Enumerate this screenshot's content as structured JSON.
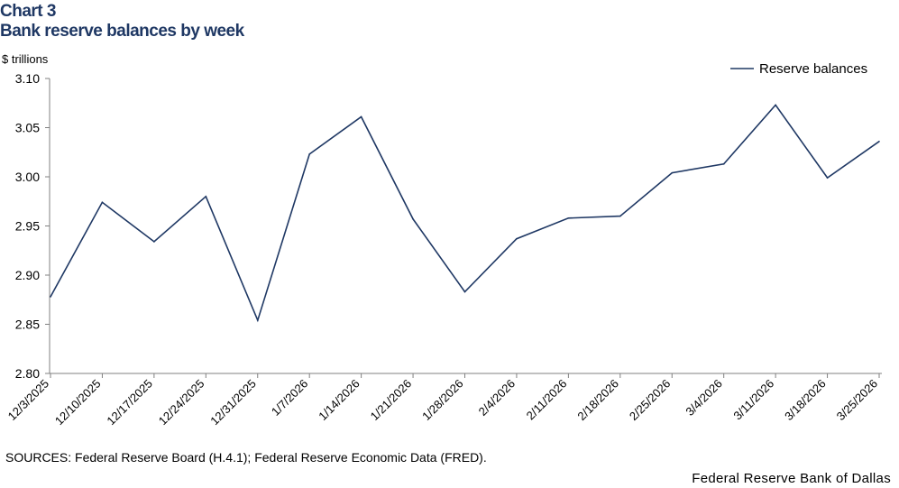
{
  "chart_data": {
    "type": "line",
    "label": "Chart 3",
    "title": "Bank reserve balances by week",
    "ylabel": "$ trillions",
    "xlabel": "",
    "ylim": [
      2.8,
      3.1
    ],
    "ytick_values": [
      2.8,
      2.85,
      2.9,
      2.95,
      3.0,
      3.05,
      3.1
    ],
    "ytick_labels": [
      "2.80",
      "2.85",
      "2.90",
      "2.95",
      "3.00",
      "3.05",
      "3.10"
    ],
    "categories": [
      "12/3/2025",
      "12/10/2025",
      "12/17/2025",
      "12/24/2025",
      "12/31/2025",
      "1/7/2026",
      "1/14/2026",
      "1/21/2026",
      "1/28/2026",
      "2/4/2026",
      "2/11/2026",
      "2/18/2026",
      "2/25/2026",
      "3/4/2026",
      "3/11/2026",
      "3/18/2026",
      "3/25/2026"
    ],
    "series": [
      {
        "name": "Reserve balances",
        "color": "#1f3864",
        "values": [
          2.878,
          2.974,
          2.934,
          2.98,
          2.854,
          3.023,
          3.061,
          2.957,
          2.883,
          2.937,
          2.958,
          2.96,
          3.004,
          3.013,
          3.073,
          2.999,
          3.036
        ]
      }
    ],
    "legend_position": "top-right",
    "grid": false
  },
  "footer": {
    "sources": "SOURCES: Federal Reserve Board (H.4.1); Federal Reserve Economic Data (FRED).",
    "credit": "Federal Reserve Bank of Dallas"
  }
}
